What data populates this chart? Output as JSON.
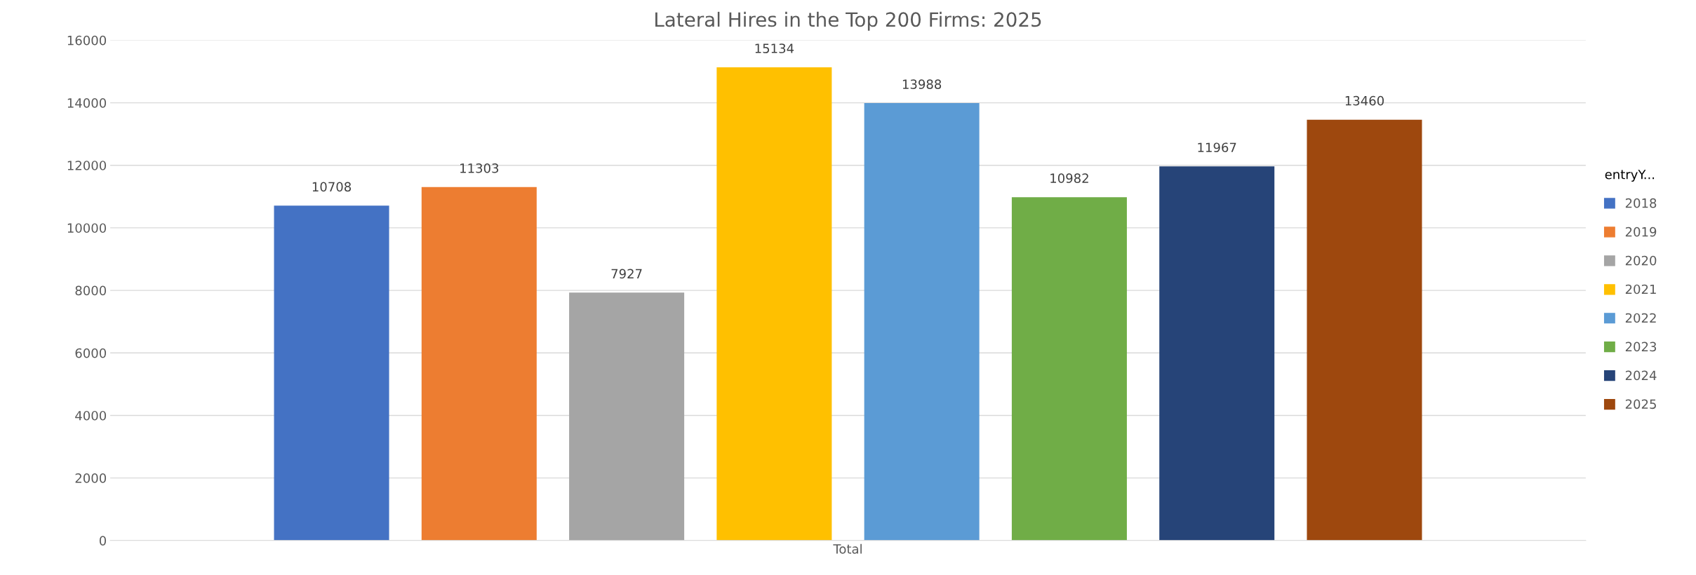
{
  "chart_data": {
    "type": "bar",
    "title": "Lateral Hires in the Top 200 Firms: 2025",
    "categories": [
      "Total"
    ],
    "series": [
      {
        "name": "2018",
        "color": "#4472c4",
        "values": [
          10708
        ]
      },
      {
        "name": "2019",
        "color": "#ed7d31",
        "values": [
          11303
        ]
      },
      {
        "name": "2020",
        "color": "#a5a5a5",
        "values": [
          7927
        ]
      },
      {
        "name": "2021",
        "color": "#ffc000",
        "values": [
          15134
        ]
      },
      {
        "name": "2022",
        "color": "#5b9bd5",
        "values": [
          13988
        ]
      },
      {
        "name": "2023",
        "color": "#70ad47",
        "values": [
          10982
        ]
      },
      {
        "name": "2024",
        "color": "#264478",
        "values": [
          11967
        ]
      },
      {
        "name": "2025",
        "color": "#9e480e",
        "values": [
          13460
        ]
      }
    ],
    "legend_title": "entryY...",
    "ylim": [
      0,
      16000
    ],
    "yticks": [
      0,
      2000,
      4000,
      6000,
      8000,
      10000,
      12000,
      14000,
      16000
    ],
    "grid": "y",
    "legend": "right",
    "data_labels": true
  }
}
